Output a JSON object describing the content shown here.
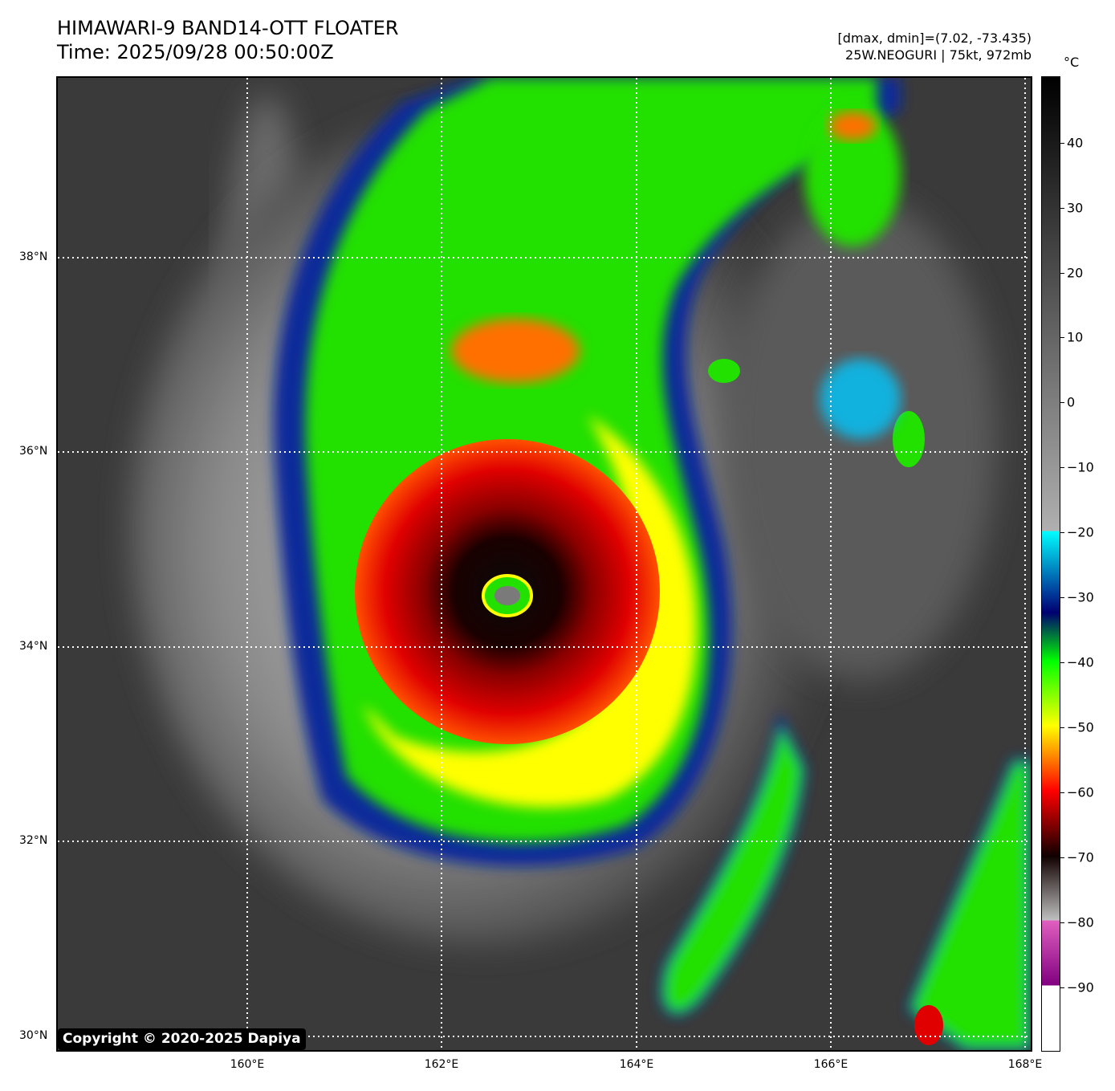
{
  "title": {
    "line1": "HIMAWARI-9 BAND14-OTT FLOATER",
    "line2": "Time: 2025/09/28 00:50:00Z"
  },
  "info": {
    "line1": "[dmax, dmin]=(7.02, -73.435)",
    "line2": "25W.NEOGURI | 75kt, 972mb"
  },
  "colorbar": {
    "unit": "°C",
    "ticks": [
      "40",
      "30",
      "20",
      "10",
      "0",
      "−10",
      "−20",
      "−30",
      "−40",
      "−50",
      "−60",
      "−70",
      "−80",
      "−90"
    ]
  },
  "axes": {
    "lat_labels": [
      "38°N",
      "36°N",
      "34°N",
      "32°N",
      "30°N"
    ],
    "lon_labels": [
      "160°E",
      "162°E",
      "164°E",
      "166°E",
      "168°E"
    ]
  },
  "copyright": "Copyright © 2020-2025 Dapiya",
  "colors": {
    "background_cloud": "#3a3a3a",
    "cold_red": "#e00000",
    "eye_black": "#0a0a0a",
    "green": "#22e000",
    "yellow": "#ffff00",
    "blue": "#001a8a",
    "cyan": "#00c8ff"
  }
}
